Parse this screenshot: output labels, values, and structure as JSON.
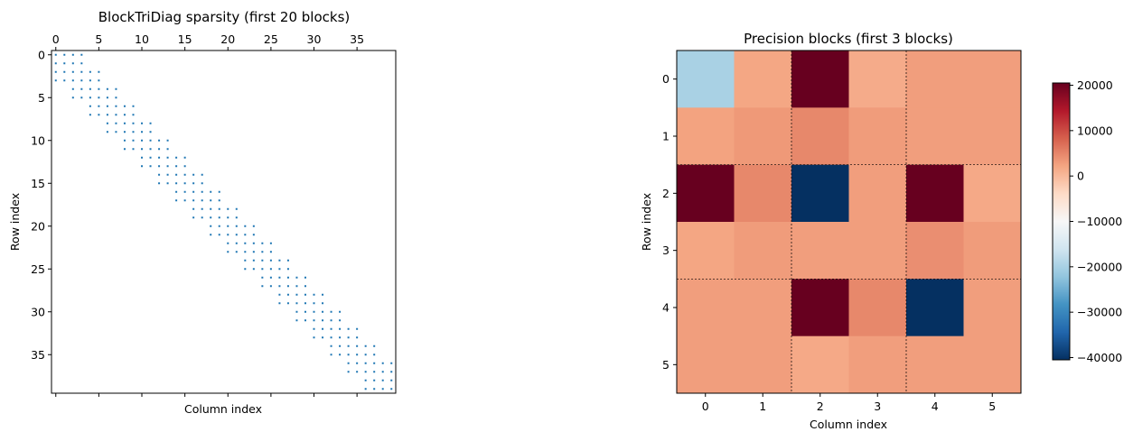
{
  "chart_data": [
    {
      "type": "scatter",
      "title": "BlockTriDiag sparsity (first 20 blocks)",
      "xlabel": "Column index",
      "ylabel": "Row index",
      "matrix_size": 40,
      "block_size": 2,
      "num_blocks": 20,
      "structure": "block-tridiagonal",
      "xlim": [
        -0.5,
        39.5
      ],
      "ylim": [
        39.5,
        -0.5
      ],
      "x_axis_position": "top",
      "x_ticks": [
        0,
        5,
        10,
        15,
        20,
        25,
        30,
        35
      ],
      "y_ticks": [
        0,
        5,
        10,
        15,
        20,
        25,
        30,
        35
      ],
      "marker_color": "#1f77b4",
      "grid": false
    },
    {
      "type": "heatmap",
      "title": "Precision blocks (first 3 blocks)",
      "xlabel": "Column index",
      "ylabel": "Row index",
      "colormap": "RdBu_r",
      "vmin": -40500,
      "vmax": 20500,
      "x_ticks": [
        0,
        1,
        2,
        3,
        4,
        5
      ],
      "y_ticks": [
        0,
        1,
        2,
        3,
        4,
        5
      ],
      "block_size": 2,
      "block_separators": "dashed",
      "colorbar_ticks": [
        20000,
        10000,
        0,
        -10000,
        -20000,
        -30000,
        -40000
      ],
      "colorbar_tick_labels": [
        "20000",
        "10000",
        "0",
        "−10000",
        "−20000",
        "−30000",
        "−40000"
      ],
      "values": [
        [
          -20000,
          2000,
          20500,
          1500,
          2800,
          2800
        ],
        [
          2400,
          3300,
          4800,
          3000,
          2800,
          2800
        ],
        [
          20500,
          4800,
          -40500,
          2800,
          20500,
          1800
        ],
        [
          2100,
          3000,
          2800,
          2800,
          4200,
          3000
        ],
        [
          2800,
          2800,
          20500,
          4800,
          -40500,
          2800
        ],
        [
          2800,
          2800,
          1800,
          2800,
          2800,
          2800
        ]
      ],
      "grid": false
    }
  ]
}
